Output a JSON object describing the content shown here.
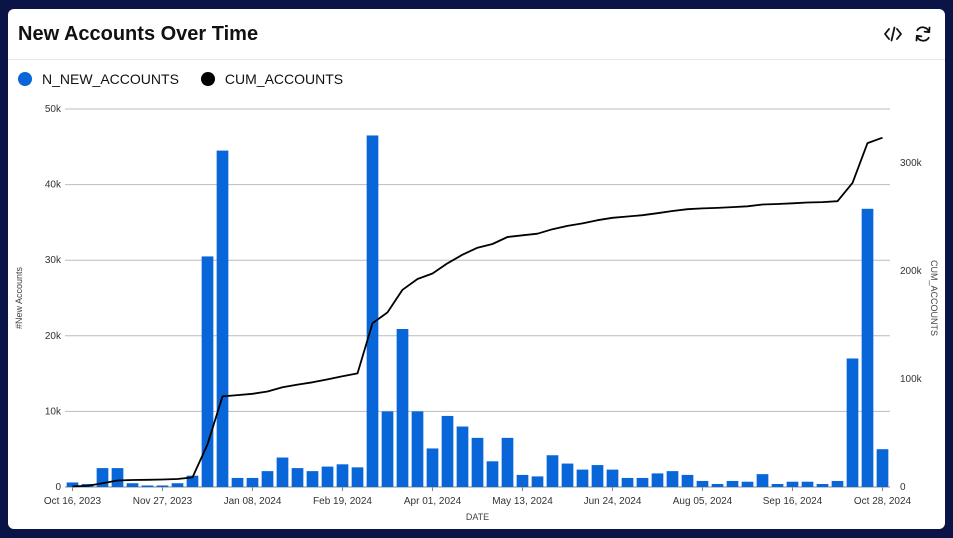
{
  "header": {
    "title": "New Accounts Over Time",
    "code_icon": "code-icon",
    "refresh_icon": "refresh-icon"
  },
  "colors": {
    "bar": "#0866d8",
    "line": "#000000",
    "grid": "#b9bcc2"
  },
  "chart_data": {
    "type": "bar",
    "title": "New Accounts Over Time",
    "xlabel": "DATE",
    "ylabel": "#New Accounts",
    "y2label": "CUM_ACCOUNTS",
    "ylim": [
      0,
      50000
    ],
    "y2lim": [
      0,
      350000
    ],
    "yticks": [
      "0",
      "10k",
      "20k",
      "30k",
      "40k",
      "50k"
    ],
    "y2ticks": [
      "0",
      "100k",
      "200k",
      "300k"
    ],
    "xticks": [
      "Oct 16, 2023",
      "Nov 27, 2023",
      "Jan 08, 2024",
      "Feb 19, 2024",
      "Apr 01, 2024",
      "May 13, 2024",
      "Jun 24, 2024",
      "Aug 05, 2024",
      "Sep 16, 2024",
      "Oct 28, 2024"
    ],
    "grid": true,
    "legend_position": "top-left",
    "series": [
      {
        "name": "N_NEW_ACCOUNTS",
        "type": "bar",
        "values": [
          600,
          400,
          2500,
          2500,
          500,
          200,
          200,
          500,
          1500,
          30500,
          44500,
          1200,
          1200,
          2100,
          3900,
          2500,
          2100,
          2700,
          3000,
          2600,
          46500,
          10000,
          20900,
          10000,
          5100,
          9400,
          8000,
          6500,
          3400,
          6500,
          1600,
          1400,
          4200,
          3100,
          2300,
          2900,
          2300,
          1200,
          1200,
          1800,
          2100,
          1600,
          800,
          400,
          800,
          700,
          1700,
          400,
          700,
          700,
          400,
          800,
          17000,
          36800,
          5000
        ]
      },
      {
        "name": "CUM_ACCOUNTS",
        "type": "line",
        "values": [
          600,
          1000,
          3500,
          6000,
          6500,
          6700,
          6900,
          7400,
          8900,
          39400,
          83900,
          85100,
          86300,
          88400,
          92300,
          94800,
          96900,
          99600,
          102600,
          105200,
          151700,
          161700,
          182600,
          192600,
          197700,
          207100,
          215100,
          221600,
          225000,
          231500,
          233100,
          234500,
          238700,
          241800,
          244100,
          247000,
          249300,
          250500,
          251700,
          253500,
          255600,
          257200,
          258000,
          258400,
          259200,
          259900,
          261600,
          262000,
          262700,
          263400,
          263800,
          264600,
          281600,
          318400,
          323400
        ]
      }
    ]
  }
}
